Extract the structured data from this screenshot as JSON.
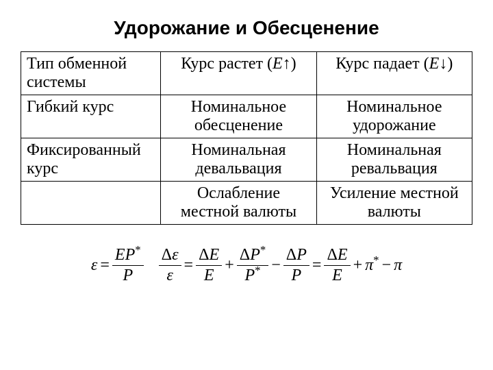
{
  "title": "Удорожание и Обесценение",
  "table": {
    "headers": {
      "col1": "Тип обменной системы",
      "col2_prefix": "Курс растет (",
      "col2_var": "E",
      "col2_suffix": ")",
      "col3_prefix": "Курс падает (",
      "col3_var": "E",
      "col3_suffix": ")"
    },
    "rows": [
      {
        "col1": "Гибкий курс",
        "col2": "Номинальное обесценение",
        "col3": "Номинальное удорожание"
      },
      {
        "col1": "Фиксированный курс",
        "col2": "Номинальная девальвация",
        "col3": "Номинальная ревальвация"
      },
      {
        "col1": "",
        "col2": "Ослабление местной валюты",
        "col3": "Усиление местной валюты"
      }
    ]
  },
  "formula": {
    "eps": "ε",
    "eq": "=",
    "plus": "+",
    "minus": "−",
    "E": "E",
    "P": "P",
    "Pstar": "P",
    "star": "*",
    "delta": "Δ",
    "pi": "π",
    "pistar": "π"
  },
  "arrows": {
    "up": "↑",
    "down": "↓"
  }
}
